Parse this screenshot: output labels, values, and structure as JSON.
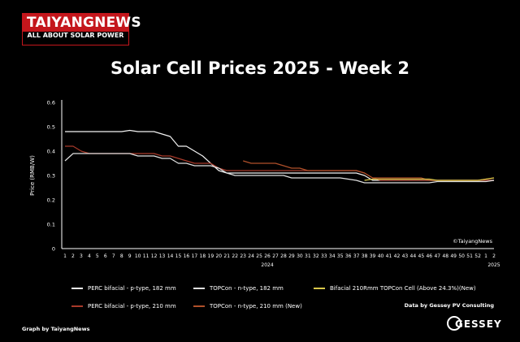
{
  "header": {
    "logo_brand": "TAIYANGNEWS",
    "logo_tagline": "ALL ABOUT SOLAR POWER",
    "title": "Solar Cell Prices 2025 - Week 2"
  },
  "footer": {
    "data_source": "Data by Gessey PV Consulting",
    "graph_by": "Graph by TaiyangNews",
    "gessey_logo_text": "GESSEY"
  },
  "colors": {
    "background": "#000000",
    "brand_red": "#c4161c"
  },
  "chart_data": {
    "type": "line",
    "title": "",
    "ylabel": "Price (RMB/W)",
    "xlabel": "",
    "ylim": [
      0,
      0.6
    ],
    "yticks": [
      0,
      0.1,
      0.2,
      0.3,
      0.4,
      0.5,
      0.6
    ],
    "watermark": "©TaiyangNews",
    "categories": [
      "1",
      "2",
      "3",
      "4",
      "5",
      "6",
      "7",
      "8",
      "9",
      "10",
      "11",
      "12",
      "13",
      "14",
      "15",
      "16",
      "17",
      "18",
      "19",
      "20",
      "21",
      "22",
      "23",
      "24",
      "25",
      "26",
      "27",
      "28",
      "29",
      "30",
      "31",
      "32",
      "33",
      "34",
      "35",
      "36",
      "37",
      "38",
      "39",
      "40",
      "41",
      "42",
      "43",
      "44",
      "45",
      "46",
      "47",
      "48",
      "49",
      "50",
      "51",
      "52",
      "1",
      "2"
    ],
    "year_labels": [
      {
        "text": "2024",
        "at_index": 25
      },
      {
        "text": "2025",
        "at_index": 53
      }
    ],
    "legend_position": "bottom",
    "series": [
      {
        "name": "PERC bifacial - p-type, 182 mm",
        "color": "#f2f2f2",
        "values": [
          0.48,
          0.48,
          0.48,
          0.48,
          0.48,
          0.48,
          0.48,
          0.48,
          0.485,
          0.48,
          0.48,
          0.48,
          0.47,
          0.46,
          0.42,
          0.42,
          0.4,
          0.38,
          0.35,
          0.32,
          0.31,
          0.31,
          0.31,
          0.31,
          0.31,
          0.31,
          0.31,
          0.31,
          0.31,
          0.31,
          0.31,
          0.31,
          0.31,
          0.31,
          0.31,
          0.31,
          0.31,
          0.3,
          0.28,
          0.28,
          0.28,
          0.28,
          0.28,
          0.28,
          0.28,
          0.28,
          0.28,
          0.28,
          0.28,
          0.28,
          0.28,
          0.28,
          0.28,
          0.28
        ]
      },
      {
        "name": "PERC bifacial - p-type, 210 mm",
        "color": "#a83a2a",
        "values": [
          0.42,
          0.42,
          0.4,
          0.39,
          0.39,
          0.39,
          0.39,
          0.39,
          0.39,
          0.39,
          0.39,
          0.39,
          0.38,
          0.38,
          0.37,
          0.36,
          0.35,
          0.35,
          0.35,
          0.33,
          0.32,
          0.32,
          0.32,
          0.32,
          0.32,
          0.32,
          0.32,
          0.32,
          0.32,
          0.32,
          0.32,
          0.32,
          0.32,
          0.32,
          0.32,
          0.32,
          0.32,
          0.31,
          0.29,
          0.28,
          0.28,
          0.28,
          0.28,
          0.28,
          0.28,
          0.28,
          0.28,
          0.28,
          0.28,
          0.28,
          0.28,
          0.28,
          0.28,
          0.28
        ]
      },
      {
        "name": "TOPCon - n-type, 182 mm",
        "color": "#e0e0e0",
        "values": [
          0.36,
          0.39,
          0.39,
          0.39,
          0.39,
          0.39,
          0.39,
          0.39,
          0.39,
          0.38,
          0.38,
          0.38,
          0.37,
          0.37,
          0.35,
          0.35,
          0.34,
          0.34,
          0.34,
          0.33,
          0.31,
          0.3,
          0.3,
          0.3,
          0.3,
          0.3,
          0.3,
          0.3,
          0.29,
          0.29,
          0.29,
          0.29,
          0.29,
          0.29,
          0.29,
          0.285,
          0.28,
          0.27,
          0.27,
          0.27,
          0.27,
          0.27,
          0.27,
          0.27,
          0.27,
          0.27,
          0.275,
          0.275,
          0.275,
          0.275,
          0.275,
          0.275,
          0.275,
          0.28
        ]
      },
      {
        "name": "TOPCon - n-type, 210 mm (New)",
        "color": "#b0502a",
        "values": [
          null,
          null,
          null,
          null,
          null,
          null,
          null,
          null,
          null,
          null,
          null,
          null,
          null,
          null,
          null,
          null,
          null,
          null,
          null,
          null,
          null,
          null,
          0.36,
          0.35,
          0.35,
          0.35,
          0.35,
          0.34,
          0.33,
          0.33,
          0.32,
          0.32,
          0.32,
          0.32,
          0.32,
          0.32,
          0.32,
          0.31,
          0.29,
          0.29,
          0.29,
          0.29,
          0.29,
          0.29,
          0.29,
          0.28,
          0.28,
          0.28,
          0.28,
          0.28,
          0.28,
          0.28,
          0.285,
          0.29
        ]
      },
      {
        "name": "Bifacial 210Rmm TOPCon Cell (Above 24.3%)(New)",
        "color": "#d9c84a",
        "values": [
          null,
          null,
          null,
          null,
          null,
          null,
          null,
          null,
          null,
          null,
          null,
          null,
          null,
          null,
          null,
          null,
          null,
          null,
          null,
          null,
          null,
          null,
          null,
          null,
          null,
          null,
          null,
          null,
          null,
          null,
          null,
          null,
          null,
          null,
          null,
          null,
          null,
          0.28,
          0.285,
          0.285,
          0.285,
          0.285,
          0.285,
          0.285,
          0.285,
          0.285,
          0.28,
          0.28,
          0.28,
          0.28,
          0.28,
          0.28,
          0.285,
          0.29
        ]
      }
    ]
  }
}
